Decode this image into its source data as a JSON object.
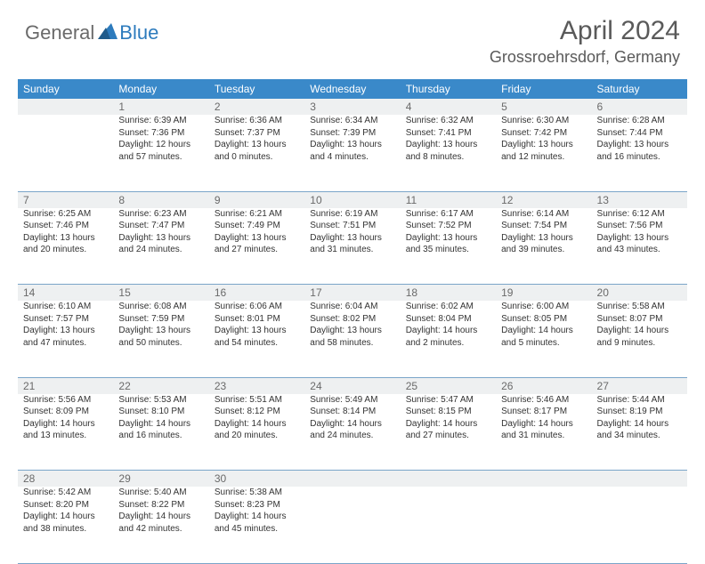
{
  "brand": {
    "part1": "General",
    "part2": "Blue"
  },
  "title": "April 2024",
  "location": "Grossroehrsdorf, Germany",
  "colors": {
    "header_bg": "#3a89c9",
    "header_text": "#ffffff",
    "daynum_bg": "#eef0f1",
    "daynum_text": "#6a6a6a",
    "border": "#7aa5c9",
    "body_text": "#333333",
    "brand_gray": "#6a6a6a",
    "brand_blue": "#2d7bbd"
  },
  "weekdays": [
    "Sunday",
    "Monday",
    "Tuesday",
    "Wednesday",
    "Thursday",
    "Friday",
    "Saturday"
  ],
  "weeks": [
    [
      null,
      {
        "n": "1",
        "sr": "Sunrise: 6:39 AM",
        "ss": "Sunset: 7:36 PM",
        "d1": "Daylight: 12 hours",
        "d2": "and 57 minutes."
      },
      {
        "n": "2",
        "sr": "Sunrise: 6:36 AM",
        "ss": "Sunset: 7:37 PM",
        "d1": "Daylight: 13 hours",
        "d2": "and 0 minutes."
      },
      {
        "n": "3",
        "sr": "Sunrise: 6:34 AM",
        "ss": "Sunset: 7:39 PM",
        "d1": "Daylight: 13 hours",
        "d2": "and 4 minutes."
      },
      {
        "n": "4",
        "sr": "Sunrise: 6:32 AM",
        "ss": "Sunset: 7:41 PM",
        "d1": "Daylight: 13 hours",
        "d2": "and 8 minutes."
      },
      {
        "n": "5",
        "sr": "Sunrise: 6:30 AM",
        "ss": "Sunset: 7:42 PM",
        "d1": "Daylight: 13 hours",
        "d2": "and 12 minutes."
      },
      {
        "n": "6",
        "sr": "Sunrise: 6:28 AM",
        "ss": "Sunset: 7:44 PM",
        "d1": "Daylight: 13 hours",
        "d2": "and 16 minutes."
      }
    ],
    [
      {
        "n": "7",
        "sr": "Sunrise: 6:25 AM",
        "ss": "Sunset: 7:46 PM",
        "d1": "Daylight: 13 hours",
        "d2": "and 20 minutes."
      },
      {
        "n": "8",
        "sr": "Sunrise: 6:23 AM",
        "ss": "Sunset: 7:47 PM",
        "d1": "Daylight: 13 hours",
        "d2": "and 24 minutes."
      },
      {
        "n": "9",
        "sr": "Sunrise: 6:21 AM",
        "ss": "Sunset: 7:49 PM",
        "d1": "Daylight: 13 hours",
        "d2": "and 27 minutes."
      },
      {
        "n": "10",
        "sr": "Sunrise: 6:19 AM",
        "ss": "Sunset: 7:51 PM",
        "d1": "Daylight: 13 hours",
        "d2": "and 31 minutes."
      },
      {
        "n": "11",
        "sr": "Sunrise: 6:17 AM",
        "ss": "Sunset: 7:52 PM",
        "d1": "Daylight: 13 hours",
        "d2": "and 35 minutes."
      },
      {
        "n": "12",
        "sr": "Sunrise: 6:14 AM",
        "ss": "Sunset: 7:54 PM",
        "d1": "Daylight: 13 hours",
        "d2": "and 39 minutes."
      },
      {
        "n": "13",
        "sr": "Sunrise: 6:12 AM",
        "ss": "Sunset: 7:56 PM",
        "d1": "Daylight: 13 hours",
        "d2": "and 43 minutes."
      }
    ],
    [
      {
        "n": "14",
        "sr": "Sunrise: 6:10 AM",
        "ss": "Sunset: 7:57 PM",
        "d1": "Daylight: 13 hours",
        "d2": "and 47 minutes."
      },
      {
        "n": "15",
        "sr": "Sunrise: 6:08 AM",
        "ss": "Sunset: 7:59 PM",
        "d1": "Daylight: 13 hours",
        "d2": "and 50 minutes."
      },
      {
        "n": "16",
        "sr": "Sunrise: 6:06 AM",
        "ss": "Sunset: 8:01 PM",
        "d1": "Daylight: 13 hours",
        "d2": "and 54 minutes."
      },
      {
        "n": "17",
        "sr": "Sunrise: 6:04 AM",
        "ss": "Sunset: 8:02 PM",
        "d1": "Daylight: 13 hours",
        "d2": "and 58 minutes."
      },
      {
        "n": "18",
        "sr": "Sunrise: 6:02 AM",
        "ss": "Sunset: 8:04 PM",
        "d1": "Daylight: 14 hours",
        "d2": "and 2 minutes."
      },
      {
        "n": "19",
        "sr": "Sunrise: 6:00 AM",
        "ss": "Sunset: 8:05 PM",
        "d1": "Daylight: 14 hours",
        "d2": "and 5 minutes."
      },
      {
        "n": "20",
        "sr": "Sunrise: 5:58 AM",
        "ss": "Sunset: 8:07 PM",
        "d1": "Daylight: 14 hours",
        "d2": "and 9 minutes."
      }
    ],
    [
      {
        "n": "21",
        "sr": "Sunrise: 5:56 AM",
        "ss": "Sunset: 8:09 PM",
        "d1": "Daylight: 14 hours",
        "d2": "and 13 minutes."
      },
      {
        "n": "22",
        "sr": "Sunrise: 5:53 AM",
        "ss": "Sunset: 8:10 PM",
        "d1": "Daylight: 14 hours",
        "d2": "and 16 minutes."
      },
      {
        "n": "23",
        "sr": "Sunrise: 5:51 AM",
        "ss": "Sunset: 8:12 PM",
        "d1": "Daylight: 14 hours",
        "d2": "and 20 minutes."
      },
      {
        "n": "24",
        "sr": "Sunrise: 5:49 AM",
        "ss": "Sunset: 8:14 PM",
        "d1": "Daylight: 14 hours",
        "d2": "and 24 minutes."
      },
      {
        "n": "25",
        "sr": "Sunrise: 5:47 AM",
        "ss": "Sunset: 8:15 PM",
        "d1": "Daylight: 14 hours",
        "d2": "and 27 minutes."
      },
      {
        "n": "26",
        "sr": "Sunrise: 5:46 AM",
        "ss": "Sunset: 8:17 PM",
        "d1": "Daylight: 14 hours",
        "d2": "and 31 minutes."
      },
      {
        "n": "27",
        "sr": "Sunrise: 5:44 AM",
        "ss": "Sunset: 8:19 PM",
        "d1": "Daylight: 14 hours",
        "d2": "and 34 minutes."
      }
    ],
    [
      {
        "n": "28",
        "sr": "Sunrise: 5:42 AM",
        "ss": "Sunset: 8:20 PM",
        "d1": "Daylight: 14 hours",
        "d2": "and 38 minutes."
      },
      {
        "n": "29",
        "sr": "Sunrise: 5:40 AM",
        "ss": "Sunset: 8:22 PM",
        "d1": "Daylight: 14 hours",
        "d2": "and 42 minutes."
      },
      {
        "n": "30",
        "sr": "Sunrise: 5:38 AM",
        "ss": "Sunset: 8:23 PM",
        "d1": "Daylight: 14 hours",
        "d2": "and 45 minutes."
      },
      null,
      null,
      null,
      null
    ]
  ]
}
